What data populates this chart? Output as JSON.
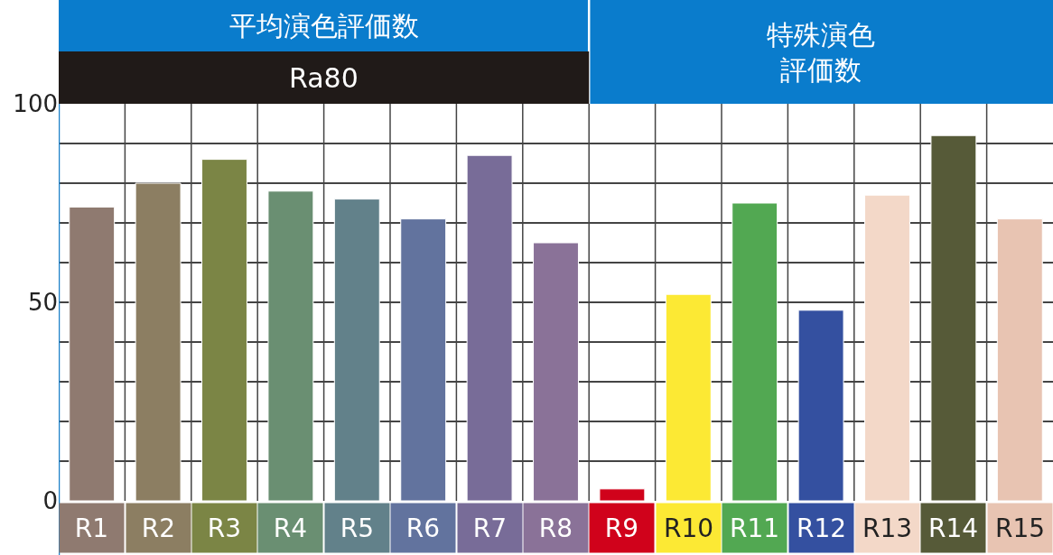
{
  "chart_data": {
    "type": "bar",
    "categories": [
      "R1",
      "R2",
      "R3",
      "R4",
      "R5",
      "R6",
      "R7",
      "R8",
      "R9",
      "R10",
      "R11",
      "R12",
      "R13",
      "R14",
      "R15"
    ],
    "values": [
      74,
      80,
      86,
      78,
      76,
      71,
      87,
      65,
      3,
      52,
      75,
      48,
      77,
      92,
      71
    ],
    "colors": [
      "#8f7a70",
      "#8c7e62",
      "#7b8545",
      "#6a8f72",
      "#62818a",
      "#62739e",
      "#786c98",
      "#8a7298",
      "#d0021b",
      "#fce934",
      "#52a852",
      "#3450a0",
      "#f3d8c8",
      "#565a38",
      "#e8c4b2"
    ],
    "ylim": [
      0,
      100
    ],
    "yticks": [
      0,
      {
        "value": 10,
        "label": null
      },
      {
        "value": 20,
        "label": null
      },
      {
        "value": 30,
        "label": null
      },
      {
        "value": 40,
        "label": null
      },
      50,
      {
        "value": 60,
        "label": null
      },
      {
        "value": 70,
        "label": null
      },
      {
        "value": 80,
        "label": null
      },
      {
        "value": 90,
        "label": null
      },
      100
    ],
    "grid": true,
    "annotations": [
      "平均演色評価数",
      "Ra80",
      "特殊演色評価数"
    ]
  }
}
